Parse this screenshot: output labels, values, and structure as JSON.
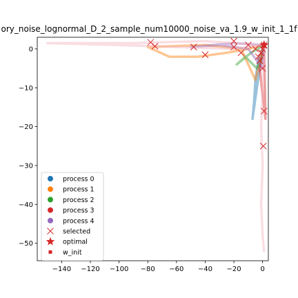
{
  "chart_data": {
    "type": "line",
    "title": "ory_noise_lognormal_D_2_sample_num10000_noise_va_1.9_w_init_1_1f",
    "xlabel": "",
    "ylabel": "",
    "xlim": [
      -157,
      4
    ],
    "ylim": [
      -54.5,
      3
    ],
    "x_ticks": [
      -140,
      -120,
      -100,
      -80,
      -60,
      -40,
      -20,
      0
    ],
    "y_ticks": [
      0,
      -10,
      -20,
      -30,
      -40,
      -50
    ],
    "grid": false,
    "legend_position": "lower-left",
    "colors": {
      "process_0": "#1f77b4",
      "process_1": "#ff7f0e",
      "process_2": "#2ca02c",
      "process_3": "#d62728",
      "process_4": "#9467bd",
      "selected": "#d62728",
      "optimal": "#d62728",
      "w_init": "#d62728"
    },
    "legend": [
      {
        "label": "process 0",
        "marker": "circle",
        "color": "#1f77b4"
      },
      {
        "label": "process 1",
        "marker": "circle",
        "color": "#ff7f0e"
      },
      {
        "label": "process 2",
        "marker": "circle",
        "color": "#2ca02c"
      },
      {
        "label": "process 3",
        "marker": "circle",
        "color": "#d62728"
      },
      {
        "label": "process 4",
        "marker": "circle",
        "color": "#9467bd"
      },
      {
        "label": "selected",
        "marker": "x",
        "color": "#d62728"
      },
      {
        "label": "optimal",
        "marker": "star",
        "color": "#d62728"
      },
      {
        "label": "w_init",
        "marker": "square",
        "color": "#d62728"
      }
    ],
    "series": [
      {
        "name": "process 0",
        "color": "#1f77b4",
        "x": [
          1,
          -3,
          -5,
          -6,
          -7,
          -4,
          -2,
          0,
          1
        ],
        "y": [
          1,
          -3,
          -8,
          -14,
          -18,
          -10,
          -5,
          -1,
          1
        ]
      },
      {
        "name": "process 1",
        "color": "#ff7f0e",
        "x": [
          1,
          -10,
          -25,
          -45,
          -65,
          -80,
          -40,
          -15,
          -5,
          1
        ],
        "y": [
          1,
          0,
          -1,
          -2,
          -2,
          0.5,
          1,
          0,
          -8,
          1
        ]
      },
      {
        "name": "process 2",
        "color": "#2ca02c",
        "x": [
          1,
          -8,
          -18,
          -12,
          -4,
          0,
          1
        ],
        "y": [
          1,
          -1,
          -4,
          -2,
          -5,
          -2,
          1
        ]
      },
      {
        "name": "process 3",
        "color": "#d62728",
        "x": [
          1,
          -2,
          0,
          2,
          1
        ],
        "y": [
          1,
          -5,
          -12,
          -18,
          1
        ]
      },
      {
        "name": "process 4",
        "color": "#9467bd",
        "x": [
          1,
          -20,
          -50,
          -30,
          -10,
          0,
          1
        ],
        "y": [
          1,
          1.5,
          0.5,
          1,
          0,
          -5,
          1
        ]
      },
      {
        "name": "",
        "color": "#f4b6c2",
        "x": [
          1,
          -40,
          -90,
          -150,
          -100,
          -60,
          -20,
          0
        ],
        "y": [
          1,
          2,
          1.5,
          1.5,
          1,
          0.5,
          0,
          1
        ]
      },
      {
        "name": "",
        "color": "#f4b6c2",
        "x": [
          1,
          0,
          -1,
          0,
          -1,
          0,
          1
        ],
        "y": [
          1,
          -10,
          -20,
          -30,
          -40,
          -48,
          -52
        ]
      }
    ],
    "selected_points": {
      "x": [
        -1,
        -2,
        0,
        1,
        0.5,
        -78,
        -48,
        -75,
        -40,
        -20,
        -15,
        -10,
        -5,
        -3,
        -2,
        -1,
        0,
        1,
        -20
      ],
      "y": [
        -1,
        -3,
        -5,
        -16,
        -25,
        1.7,
        0.5,
        0.7,
        -1.5,
        0.5,
        -1,
        1,
        0,
        -2,
        -3,
        -1,
        0,
        1,
        2
      ]
    },
    "optimal": {
      "x": 1,
      "y": 1
    },
    "w_init": {
      "x": 1,
      "y": 1
    }
  }
}
